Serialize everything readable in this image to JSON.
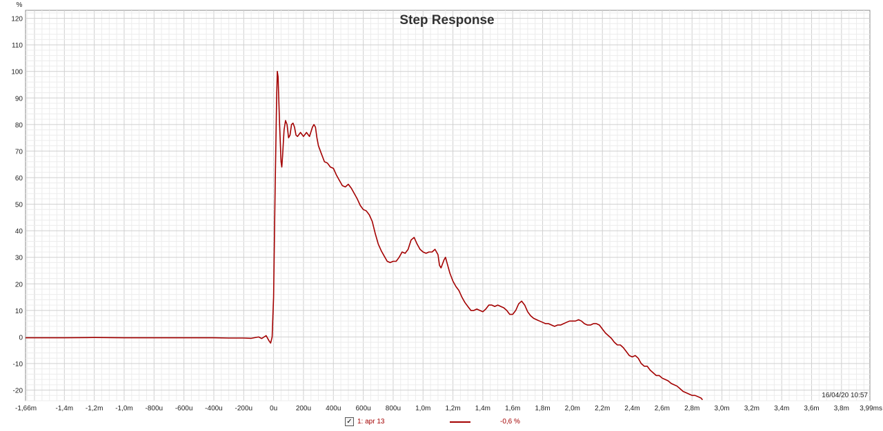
{
  "chart_data": {
    "type": "line",
    "title": "Step Response",
    "ylabel": "%",
    "xlabel": "",
    "x_unit": "ms",
    "xlim": [
      -1.66,
      3.99
    ],
    "ylim": [
      -24,
      123
    ],
    "grid": true,
    "x_tick_labels": [
      {
        "x": -1.66,
        "label": "-1,66m"
      },
      {
        "x": -1.4,
        "label": "-1,4m"
      },
      {
        "x": -1.2,
        "label": "-1,2m"
      },
      {
        "x": -1.0,
        "label": "-1,0m"
      },
      {
        "x": -0.8,
        "label": "-800u"
      },
      {
        "x": -0.6,
        "label": "-600u"
      },
      {
        "x": -0.4,
        "label": "-400u"
      },
      {
        "x": -0.2,
        "label": "-200u"
      },
      {
        "x": 0.0,
        "label": "0u"
      },
      {
        "x": 0.2,
        "label": "200u"
      },
      {
        "x": 0.4,
        "label": "400u"
      },
      {
        "x": 0.6,
        "label": "600u"
      },
      {
        "x": 0.8,
        "label": "800u"
      },
      {
        "x": 1.0,
        "label": "1,0m"
      },
      {
        "x": 1.2,
        "label": "1,2m"
      },
      {
        "x": 1.4,
        "label": "1,4m"
      },
      {
        "x": 1.6,
        "label": "1,6m"
      },
      {
        "x": 1.8,
        "label": "1,8m"
      },
      {
        "x": 2.0,
        "label": "2,0m"
      },
      {
        "x": 2.2,
        "label": "2,2m"
      },
      {
        "x": 2.4,
        "label": "2,4m"
      },
      {
        "x": 2.6,
        "label": "2,6m"
      },
      {
        "x": 2.8,
        "label": "2,8m"
      },
      {
        "x": 3.0,
        "label": "3,0m"
      },
      {
        "x": 3.2,
        "label": "3,2m"
      },
      {
        "x": 3.4,
        "label": "3,4m"
      },
      {
        "x": 3.6,
        "label": "3,6m"
      },
      {
        "x": 3.8,
        "label": "3,8m"
      },
      {
        "x": 3.99,
        "label": "3,99ms"
      }
    ],
    "y_ticks": [
      -20,
      -10,
      0,
      10,
      20,
      30,
      40,
      50,
      60,
      70,
      80,
      90,
      100,
      110,
      120
    ],
    "series": [
      {
        "name": "1: apr 13",
        "color": "#a30000",
        "points": [
          [
            -1.66,
            -0.3
          ],
          [
            -1.4,
            -0.3
          ],
          [
            -1.2,
            -0.2
          ],
          [
            -1.0,
            -0.3
          ],
          [
            -0.8,
            -0.3
          ],
          [
            -0.6,
            -0.3
          ],
          [
            -0.4,
            -0.3
          ],
          [
            -0.3,
            -0.4
          ],
          [
            -0.2,
            -0.4
          ],
          [
            -0.15,
            -0.5
          ],
          [
            -0.1,
            0
          ],
          [
            -0.08,
            -0.6
          ],
          [
            -0.05,
            0.5
          ],
          [
            -0.03,
            -1.5
          ],
          [
            -0.02,
            -2.3
          ],
          [
            -0.01,
            0
          ],
          [
            0.0,
            15
          ],
          [
            0.01,
            55
          ],
          [
            0.02,
            90
          ],
          [
            0.025,
            100
          ],
          [
            0.03,
            98
          ],
          [
            0.04,
            80
          ],
          [
            0.05,
            66
          ],
          [
            0.055,
            64
          ],
          [
            0.06,
            68
          ],
          [
            0.07,
            78
          ],
          [
            0.08,
            81.5
          ],
          [
            0.09,
            80
          ],
          [
            0.1,
            75
          ],
          [
            0.11,
            76
          ],
          [
            0.12,
            80
          ],
          [
            0.13,
            80.5
          ],
          [
            0.14,
            79
          ],
          [
            0.15,
            76
          ],
          [
            0.16,
            75.5
          ],
          [
            0.18,
            77
          ],
          [
            0.2,
            75.5
          ],
          [
            0.22,
            77
          ],
          [
            0.24,
            75.5
          ],
          [
            0.26,
            79
          ],
          [
            0.27,
            80
          ],
          [
            0.28,
            79
          ],
          [
            0.29,
            75
          ],
          [
            0.3,
            72
          ],
          [
            0.32,
            69
          ],
          [
            0.34,
            66
          ],
          [
            0.36,
            65.5
          ],
          [
            0.38,
            64
          ],
          [
            0.4,
            63.5
          ],
          [
            0.42,
            61
          ],
          [
            0.44,
            59
          ],
          [
            0.46,
            57
          ],
          [
            0.48,
            56.5
          ],
          [
            0.5,
            57.5
          ],
          [
            0.52,
            56
          ],
          [
            0.54,
            54
          ],
          [
            0.56,
            52
          ],
          [
            0.58,
            49.5
          ],
          [
            0.6,
            48
          ],
          [
            0.62,
            47.5
          ],
          [
            0.64,
            46
          ],
          [
            0.66,
            43.5
          ],
          [
            0.68,
            39
          ],
          [
            0.7,
            35
          ],
          [
            0.72,
            32.5
          ],
          [
            0.74,
            30.5
          ],
          [
            0.76,
            28.5
          ],
          [
            0.78,
            28
          ],
          [
            0.8,
            28.5
          ],
          [
            0.82,
            28.5
          ],
          [
            0.84,
            30
          ],
          [
            0.86,
            32
          ],
          [
            0.88,
            31.5
          ],
          [
            0.9,
            33
          ],
          [
            0.92,
            36.5
          ],
          [
            0.94,
            37.5
          ],
          [
            0.96,
            35
          ],
          [
            0.98,
            33
          ],
          [
            1.0,
            32
          ],
          [
            1.02,
            31.5
          ],
          [
            1.04,
            32
          ],
          [
            1.06,
            32
          ],
          [
            1.08,
            33
          ],
          [
            1.1,
            31
          ],
          [
            1.11,
            27
          ],
          [
            1.12,
            26
          ],
          [
            1.14,
            29
          ],
          [
            1.15,
            30
          ],
          [
            1.16,
            28
          ],
          [
            1.18,
            24
          ],
          [
            1.2,
            21
          ],
          [
            1.22,
            19
          ],
          [
            1.24,
            17.5
          ],
          [
            1.26,
            15
          ],
          [
            1.28,
            13
          ],
          [
            1.3,
            11.5
          ],
          [
            1.32,
            10
          ],
          [
            1.34,
            10
          ],
          [
            1.36,
            10.5
          ],
          [
            1.38,
            10
          ],
          [
            1.4,
            9.5
          ],
          [
            1.42,
            10.5
          ],
          [
            1.44,
            12
          ],
          [
            1.46,
            12
          ],
          [
            1.48,
            11.5
          ],
          [
            1.5,
            12
          ],
          [
            1.52,
            11.5
          ],
          [
            1.54,
            11
          ],
          [
            1.56,
            10
          ],
          [
            1.58,
            8.5
          ],
          [
            1.6,
            8.5
          ],
          [
            1.62,
            10
          ],
          [
            1.64,
            12.5
          ],
          [
            1.66,
            13.5
          ],
          [
            1.68,
            12
          ],
          [
            1.7,
            9.5
          ],
          [
            1.72,
            8
          ],
          [
            1.74,
            7
          ],
          [
            1.76,
            6.5
          ],
          [
            1.78,
            6
          ],
          [
            1.8,
            5.5
          ],
          [
            1.82,
            5
          ],
          [
            1.84,
            5
          ],
          [
            1.86,
            4.5
          ],
          [
            1.88,
            4
          ],
          [
            1.9,
            4.5
          ],
          [
            1.92,
            4.5
          ],
          [
            1.94,
            5
          ],
          [
            1.96,
            5.5
          ],
          [
            1.98,
            6
          ],
          [
            2.0,
            6
          ],
          [
            2.02,
            6
          ],
          [
            2.04,
            6.5
          ],
          [
            2.06,
            6
          ],
          [
            2.08,
            5
          ],
          [
            2.1,
            4.5
          ],
          [
            2.12,
            4.5
          ],
          [
            2.14,
            5
          ],
          [
            2.16,
            5
          ],
          [
            2.18,
            4.5
          ],
          [
            2.2,
            3
          ],
          [
            2.22,
            1.5
          ],
          [
            2.24,
            0.5
          ],
          [
            2.26,
            -0.5
          ],
          [
            2.28,
            -2
          ],
          [
            2.3,
            -3
          ],
          [
            2.32,
            -3
          ],
          [
            2.34,
            -4
          ],
          [
            2.36,
            -5.5
          ],
          [
            2.38,
            -7
          ],
          [
            2.4,
            -7.5
          ],
          [
            2.42,
            -7
          ],
          [
            2.44,
            -8
          ],
          [
            2.46,
            -10
          ],
          [
            2.48,
            -11
          ],
          [
            2.5,
            -11
          ],
          [
            2.52,
            -12.5
          ],
          [
            2.54,
            -13.5
          ],
          [
            2.56,
            -14.5
          ],
          [
            2.58,
            -14.5
          ],
          [
            2.6,
            -15.5
          ],
          [
            2.62,
            -16
          ],
          [
            2.64,
            -16.5
          ],
          [
            2.66,
            -17.5
          ],
          [
            2.68,
            -18
          ],
          [
            2.7,
            -18.5
          ],
          [
            2.72,
            -19.5
          ],
          [
            2.74,
            -20.5
          ],
          [
            2.76,
            -21
          ],
          [
            2.78,
            -21.5
          ],
          [
            2.8,
            -22
          ],
          [
            2.82,
            -22
          ],
          [
            2.84,
            -22.5
          ],
          [
            2.86,
            -23
          ],
          [
            2.87,
            -23.7
          ]
        ]
      }
    ],
    "timestamp": "16/04/20 10:57"
  },
  "legend": {
    "checked": true,
    "check_glyph": "✓",
    "name": "1: apr 13",
    "value": "-0,6 %",
    "color": "#a30000"
  }
}
